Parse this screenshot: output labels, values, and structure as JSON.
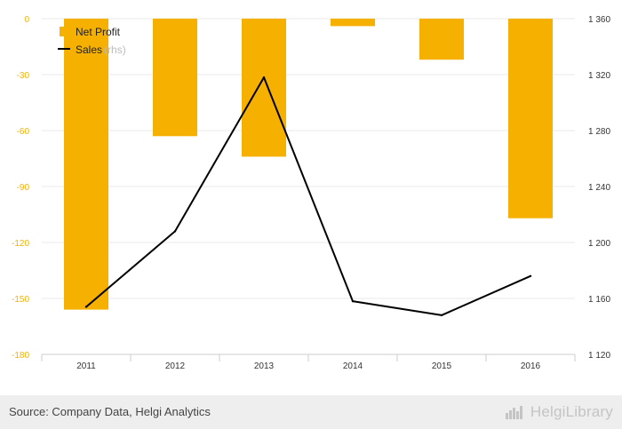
{
  "chart_data": {
    "type": "bar+line",
    "categories": [
      "2011",
      "2012",
      "2013",
      "2014",
      "2015",
      "2016"
    ],
    "series": [
      {
        "name": "Net Profit",
        "kind": "bar",
        "axis": "left",
        "color": "#f5b000",
        "values": [
          -156,
          -63,
          -74,
          -4,
          -22,
          -107
        ]
      },
      {
        "name": "Sales",
        "kind": "line",
        "axis": "right",
        "color": "#000000",
        "values": [
          1154,
          1208,
          1318,
          1158,
          1148,
          1176
        ]
      }
    ],
    "left_axis": {
      "ylim": [
        -180,
        0
      ],
      "ticks": [
        0,
        -30,
        -60,
        -90,
        -120,
        -150,
        -180
      ]
    },
    "right_axis": {
      "ylim": [
        1120,
        1360
      ],
      "ticks": [
        "1 360",
        "1 320",
        "1 280",
        "1 240",
        "1 200",
        "1 160",
        "1 120"
      ]
    },
    "legend": {
      "position": "top-left",
      "items": [
        {
          "label": "Net Profit",
          "symbol": "bar"
        },
        {
          "label": "Sales",
          "symbol": "line"
        }
      ],
      "faint_suffix": "(rhs)"
    },
    "grid": true
  },
  "footer": {
    "source": "Source: Company Data, Helgi Analytics",
    "brand": "HelgiLibrary"
  }
}
